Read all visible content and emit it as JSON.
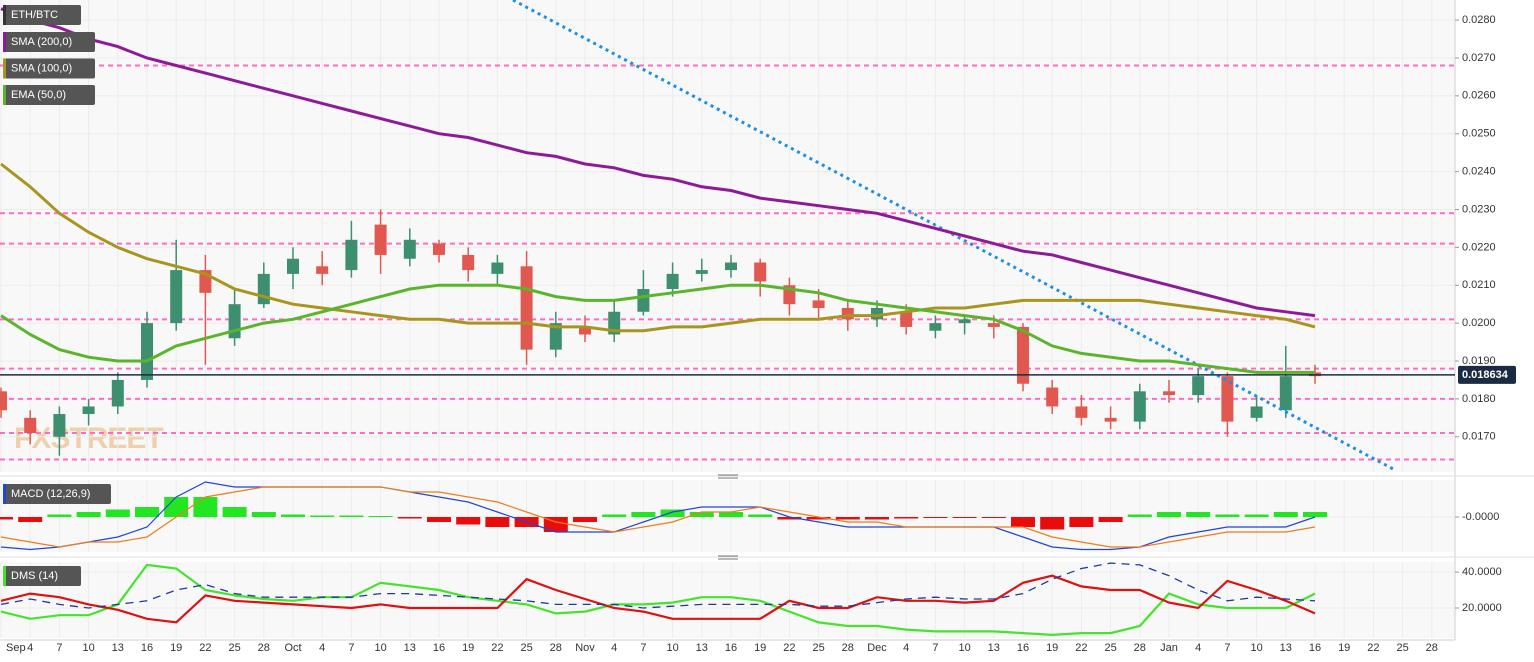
{
  "watermark": "FXSTREET",
  "chart_data": [
    {
      "type": "candlestick",
      "title": "ETH/BTC",
      "ylim": [
        0.01607,
        0.02853
      ],
      "yticks": [
        {
          "value": 0.017,
          "label": "0.0170"
        },
        {
          "value": 0.018,
          "label": "0.0180"
        },
        {
          "value": 0.019,
          "label": "0.0190"
        },
        {
          "value": 0.02,
          "label": "0.0200"
        },
        {
          "value": 0.021,
          "label": "0.0210"
        },
        {
          "value": 0.022,
          "label": "0.0220"
        },
        {
          "value": 0.023,
          "label": "0.0230"
        },
        {
          "value": 0.024,
          "label": "0.0240"
        },
        {
          "value": 0.025,
          "label": "0.0250"
        },
        {
          "value": 0.026,
          "label": "0.0260"
        },
        {
          "value": 0.027,
          "label": "0.0270"
        },
        {
          "value": 0.028,
          "label": "0.0280"
        }
      ],
      "grid": true,
      "up_color": "#3d8f6f",
      "down_color": "#e0584f",
      "open": [
        0.0182,
        0.0175,
        0.017,
        0.0176,
        0.0178,
        0.0185,
        0.02,
        0.0214,
        0.0196,
        0.0205,
        0.0213,
        0.0215,
        0.0214,
        0.0226,
        0.0217,
        0.0221,
        0.0218,
        0.0213,
        0.0215,
        0.0193,
        0.0199,
        0.0197,
        0.0203,
        0.0209,
        0.0213,
        0.0214,
        0.0216,
        0.021,
        0.0206,
        0.0204,
        0.0201,
        0.0203,
        0.0198,
        0.02,
        0.02,
        0.0199,
        0.0183,
        0.0178,
        0.0175,
        0.0174,
        0.0182,
        0.0181,
        0.0186,
        0.0175,
        0.0177,
        0.0187
      ],
      "high": [
        0.0183,
        0.0177,
        0.0178,
        0.018,
        0.0187,
        0.0203,
        0.0222,
        0.0218,
        0.0209,
        0.0216,
        0.022,
        0.0219,
        0.0227,
        0.023,
        0.0225,
        0.0222,
        0.022,
        0.0218,
        0.0219,
        0.0203,
        0.0202,
        0.0206,
        0.0214,
        0.0216,
        0.0217,
        0.0218,
        0.0217,
        0.0212,
        0.0209,
        0.0206,
        0.0206,
        0.0205,
        0.0202,
        0.0202,
        0.0202,
        0.02,
        0.0185,
        0.0181,
        0.0178,
        0.0184,
        0.0185,
        0.0188,
        0.0187,
        0.0181,
        0.0194,
        0.0189
      ],
      "low": [
        0.0175,
        0.0168,
        0.0165,
        0.0173,
        0.0176,
        0.0183,
        0.0198,
        0.0189,
        0.0194,
        0.0204,
        0.0209,
        0.021,
        0.0212,
        0.0213,
        0.0215,
        0.0216,
        0.0211,
        0.021,
        0.0189,
        0.0191,
        0.0195,
        0.0195,
        0.0202,
        0.0207,
        0.0211,
        0.0212,
        0.0207,
        0.0202,
        0.0201,
        0.0198,
        0.0199,
        0.0197,
        0.0196,
        0.0197,
        0.0196,
        0.0182,
        0.0176,
        0.0173,
        0.0172,
        0.0172,
        0.0179,
        0.0179,
        0.017,
        0.0174,
        0.0175,
        0.0184
      ],
      "close": [
        0.0177,
        0.0171,
        0.0176,
        0.0178,
        0.0185,
        0.02,
        0.0214,
        0.0208,
        0.0205,
        0.0213,
        0.0217,
        0.0213,
        0.0222,
        0.0218,
        0.0222,
        0.0218,
        0.0214,
        0.0216,
        0.0193,
        0.02,
        0.0197,
        0.0203,
        0.0209,
        0.0213,
        0.0214,
        0.0216,
        0.0211,
        0.0205,
        0.0204,
        0.0201,
        0.0204,
        0.0199,
        0.02,
        0.0201,
        0.0199,
        0.0184,
        0.0178,
        0.0175,
        0.0174,
        0.0182,
        0.0181,
        0.0186,
        0.0174,
        0.0178,
        0.0186,
        0.0186
      ],
      "series": [
        {
          "name": "SMA (200,0)",
          "color": "#8e1a9a",
          "values": [
            0.0283,
            0.028,
            0.0278,
            0.0275,
            0.0273,
            0.027,
            0.0268,
            0.0266,
            0.0264,
            0.0262,
            0.026,
            0.0258,
            0.0256,
            0.0254,
            0.0252,
            0.025,
            0.0249,
            0.0247,
            0.0245,
            0.0244,
            0.0242,
            0.0241,
            0.0239,
            0.0238,
            0.0236,
            0.0235,
            0.0233,
            0.0232,
            0.0231,
            0.023,
            0.0229,
            0.0227,
            0.0225,
            0.0223,
            0.0221,
            0.0219,
            0.0218,
            0.0216,
            0.0214,
            0.0212,
            0.021,
            0.0208,
            0.0206,
            0.0204,
            0.0203,
            0.0202
          ]
        },
        {
          "name": "SMA (100,0)",
          "color": "#a8951e",
          "values": [
            0.0242,
            0.0236,
            0.0229,
            0.0224,
            0.022,
            0.0217,
            0.0215,
            0.0213,
            0.0209,
            0.0207,
            0.0205,
            0.0204,
            0.0203,
            0.0202,
            0.0201,
            0.0201,
            0.02,
            0.02,
            0.02,
            0.0199,
            0.0199,
            0.0198,
            0.0198,
            0.0199,
            0.0199,
            0.02,
            0.0201,
            0.0201,
            0.0201,
            0.0202,
            0.0202,
            0.0203,
            0.0204,
            0.0204,
            0.0205,
            0.0206,
            0.0206,
            0.0206,
            0.0206,
            0.0206,
            0.0205,
            0.0204,
            0.0203,
            0.0202,
            0.0201,
            0.0199
          ]
        },
        {
          "name": "EMA (50,0)",
          "color": "#5ab52a",
          "values": [
            0.0202,
            0.0197,
            0.0193,
            0.0191,
            0.019,
            0.019,
            0.0194,
            0.0196,
            0.0198,
            0.02,
            0.0201,
            0.0203,
            0.0205,
            0.0207,
            0.0209,
            0.021,
            0.021,
            0.021,
            0.0209,
            0.0207,
            0.0206,
            0.0206,
            0.0207,
            0.0208,
            0.0209,
            0.021,
            0.021,
            0.0209,
            0.0208,
            0.0206,
            0.0205,
            0.0204,
            0.0203,
            0.0202,
            0.0201,
            0.0198,
            0.0194,
            0.0192,
            0.0191,
            0.019,
            0.019,
            0.0189,
            0.0188,
            0.0187,
            0.0187,
            0.0187
          ]
        }
      ],
      "levels": [
        0.0268,
        0.0229,
        0.0221,
        0.0201,
        0.0188,
        0.018,
        0.0171,
        0.0164
      ],
      "level_color": "#ff6cc4",
      "last_price": 0.018634,
      "last_price_color": "#1c2b44"
    },
    {
      "type": "macd",
      "title": "MACD (12,26,9)",
      "ylim": [
        -0.0007,
        0.00074
      ],
      "yticks": [
        {
          "value": 0,
          "label": "-0.0000"
        }
      ],
      "series": [
        {
          "kind": "bar",
          "color": "#22e622",
          "negative_color": "#e80c0c",
          "values": [
            -5e-05,
            -0.0001,
            5e-05,
            0.0001,
            0.00015,
            0.0002,
            0.0004,
            0.0004,
            0.0002,
            0.0001,
            5e-05,
            3e-05,
            3e-05,
            2e-05,
            -3e-05,
            -0.0001,
            -0.00015,
            -0.0002,
            -0.0002,
            -0.0003,
            -0.0001,
            5e-05,
            0.0001,
            0.00015,
            0.0001,
            0.0001,
            5e-05,
            -5e-05,
            -5e-05,
            -5e-05,
            -5e-05,
            -3e-05,
            -2e-05,
            -2e-05,
            -2e-05,
            -0.0002,
            -0.00025,
            -0.0002,
            -0.0001,
            5e-05,
            0.0001,
            0.0001,
            5e-05,
            5e-05,
            0.0001,
            0.0001
          ]
        },
        {
          "kind": "line",
          "color": "#2046d6",
          "values": [
            -0.0006,
            -0.00065,
            -0.0006,
            -0.0005,
            -0.0004,
            -0.0002,
            0.0004,
            0.0007,
            0.0006,
            0.0006,
            0.0006,
            0.0006,
            0.0006,
            0.0006,
            0.0005,
            0.0004,
            0.0003,
            0.0001,
            -0.0001,
            -0.0003,
            -0.0003,
            -0.0003,
            -0.0001,
            0.0001,
            0.0002,
            0.0002,
            0.0002,
            0,
            -0.0001,
            -0.0002,
            -0.0002,
            -0.0002,
            -0.0002,
            -0.0002,
            -0.0002,
            -0.0004,
            -0.0006,
            -0.00065,
            -0.00065,
            -0.0006,
            -0.0004,
            -0.0003,
            -0.0002,
            -0.0002,
            -0.0002,
            0
          ]
        },
        {
          "kind": "line",
          "color": "#f07c1a",
          "values": [
            -0.0004,
            -0.0005,
            -0.0006,
            -0.0005,
            -0.0005,
            -0.0004,
            0,
            0.0004,
            0.0005,
            0.0006,
            0.0006,
            0.0006,
            0.0006,
            0.0006,
            0.0005,
            0.0005,
            0.0004,
            0.0003,
            0.0001,
            -0.0001,
            -0.0002,
            -0.0003,
            -0.0002,
            -0.0001,
            0.0001,
            0.0001,
            0.0002,
            0.0001,
            0,
            -0.0001,
            -0.0001,
            -0.0002,
            -0.0002,
            -0.0002,
            -0.0002,
            -0.0002,
            -0.0004,
            -0.0005,
            -0.0006,
            -0.0006,
            -0.0005,
            -0.0004,
            -0.0003,
            -0.0003,
            -0.0003,
            -0.0002
          ]
        }
      ]
    },
    {
      "type": "dms",
      "title": "DMS (14)",
      "ylim": [
        3.3,
        45.6
      ],
      "yticks": [
        {
          "value": 20,
          "label": "20.0000"
        },
        {
          "value": 40,
          "label": "40.0000"
        }
      ],
      "series": [
        {
          "color": "#44e42c",
          "values": [
            18,
            14,
            16,
            16,
            22,
            44,
            42,
            30,
            27,
            25,
            24,
            26,
            26,
            34,
            32,
            30,
            26,
            24,
            22,
            17,
            18,
            22,
            22,
            23,
            26,
            26,
            24,
            18,
            12,
            10,
            10,
            8,
            7,
            7,
            7,
            6,
            5,
            6,
            6,
            10,
            28,
            22,
            20,
            20,
            20,
            28
          ]
        },
        {
          "color": "#e01010",
          "values": [
            24,
            28,
            26,
            22,
            19,
            14,
            12,
            27,
            24,
            23,
            22,
            21,
            20,
            22,
            20,
            20,
            20,
            20,
            36,
            30,
            25,
            20,
            18,
            14,
            14,
            14,
            14,
            24,
            20,
            20,
            26,
            24,
            24,
            23,
            24,
            34,
            38,
            32,
            30,
            30,
            23,
            20,
            35,
            30,
            24,
            17
          ]
        },
        {
          "color": "#1e3a9a",
          "dash": true,
          "values": [
            22,
            25,
            22,
            20,
            22,
            24,
            30,
            33,
            28,
            26,
            26,
            26,
            26,
            28,
            28,
            27,
            26,
            25,
            24,
            22,
            22,
            22,
            20,
            21,
            22,
            22,
            22,
            22,
            21,
            21,
            23,
            25,
            26,
            25,
            25,
            28,
            36,
            42,
            45,
            44,
            38,
            30,
            24,
            26,
            25,
            24
          ]
        }
      ],
      "x_labels": [
        "Sep",
        "4",
        "7",
        "10",
        "13",
        "16",
        "19",
        "22",
        "25",
        "28",
        "Oct",
        "4",
        "7",
        "10",
        "13",
        "16",
        "19",
        "22",
        "25",
        "28",
        "Nov",
        "4",
        "7",
        "10",
        "13",
        "16",
        "19",
        "22",
        "25",
        "28",
        "Dec",
        "4",
        "7",
        "10",
        "13",
        "16",
        "19",
        "22",
        "25",
        "28",
        "Jan",
        "4",
        "7",
        "10",
        "13",
        "16",
        "19",
        "22",
        "25",
        "28"
      ]
    }
  ]
}
